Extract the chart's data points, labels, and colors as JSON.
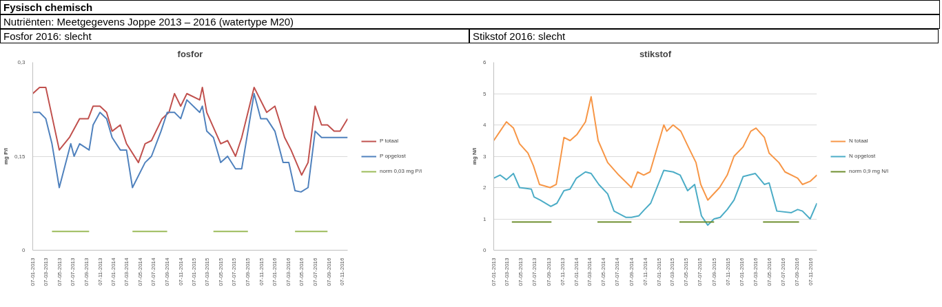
{
  "chart_data": [
    {
      "type": "line",
      "title": "fosfor",
      "ylabel": "mg P/l",
      "annotations": [
        "Fysisch chemisch",
        "Nutriënten: Meetgegevens Joppe 2013 – 2016 (watertype M20)",
        "Fosfor 2016: slecht"
      ],
      "xlim": [
        "2013-01-07",
        "2016-12-01"
      ],
      "xticks": [
        {
          "value": "2013-01-07",
          "label": "07-01-2013"
        },
        {
          "value": "2013-03-07",
          "label": "07-03-2013"
        },
        {
          "value": "2013-05-07",
          "label": "07-05-2013"
        },
        {
          "value": "2013-07-07",
          "label": "07-07-2013"
        },
        {
          "value": "2013-09-07",
          "label": "07-09-2013"
        },
        {
          "value": "2013-11-07",
          "label": "07-11-2013"
        },
        {
          "value": "2014-01-07",
          "label": "07-01-2014"
        },
        {
          "value": "2014-03-07",
          "label": "07-03-2014"
        },
        {
          "value": "2014-05-07",
          "label": "07-05-2014"
        },
        {
          "value": "2014-07-07",
          "label": "07-07-2014"
        },
        {
          "value": "2014-09-07",
          "label": "07-09-2014"
        },
        {
          "value": "2014-11-07",
          "label": "07-11-2014"
        },
        {
          "value": "2015-01-07",
          "label": "07-01-2015"
        },
        {
          "value": "2015-03-07",
          "label": "07-03-2015"
        },
        {
          "value": "2015-05-07",
          "label": "07-05-2015"
        },
        {
          "value": "2015-07-07",
          "label": "07-07-2015"
        },
        {
          "value": "2015-09-07",
          "label": "07-09-2015"
        },
        {
          "value": "2015-11-07",
          "label": "07-11-2015"
        },
        {
          "value": "2016-01-07",
          "label": "07-01-2016"
        },
        {
          "value": "2016-03-07",
          "label": "07-03-2016"
        },
        {
          "value": "2016-05-07",
          "label": "07-05-2016"
        },
        {
          "value": "2016-07-07",
          "label": "07-07-2016"
        },
        {
          "value": "2016-09-07",
          "label": "07-09-2016"
        },
        {
          "value": "2016-11-07",
          "label": "07-11-2016"
        }
      ],
      "ylim": [
        0,
        0.3
      ],
      "yticks": [
        0,
        {
          "value": 0.15,
          "label": "0,15"
        },
        {
          "value": 0.3,
          "label": "0,3"
        }
      ],
      "grid": "y",
      "legend": "right",
      "line_style": "solid",
      "marker": "none",
      "series": [
        {
          "name": "P totaal",
          "color": "#c0504d",
          "x": [
            "2013-01-07",
            "2013-02-07",
            "2013-03-07",
            "2013-05-07",
            "2013-06-22",
            "2013-08-07",
            "2013-09-15",
            "2013-10-07",
            "2013-11-07",
            "2013-12-07",
            "2014-01-01",
            "2014-02-07",
            "2014-03-07",
            "2014-04-30",
            "2014-05-30",
            "2014-06-28",
            "2014-08-15",
            "2014-09-15",
            "2014-10-10",
            "2014-11-07",
            "2014-12-05",
            "2015-02-01",
            "2015-02-13",
            "2015-03-05",
            "2015-05-07",
            "2015-06-07",
            "2015-07-13",
            "2015-08-10",
            "2015-10-05",
            "2015-12-01",
            "2016-01-07",
            "2016-02-20",
            "2016-03-20",
            "2016-05-07",
            "2016-06-05",
            "2016-07-07",
            "2016-08-05",
            "2016-09-01",
            "2016-10-01",
            "2016-10-28",
            "2016-12-01"
          ],
          "values": [
            0.25,
            0.26,
            0.26,
            0.16,
            0.18,
            0.21,
            0.21,
            0.23,
            0.23,
            0.22,
            0.19,
            0.2,
            0.17,
            0.14,
            0.17,
            0.175,
            0.21,
            0.22,
            0.25,
            0.23,
            0.25,
            0.24,
            0.26,
            0.22,
            0.17,
            0.175,
            0.15,
            0.18,
            0.26,
            0.22,
            0.23,
            0.18,
            0.16,
            0.12,
            0.14,
            0.23,
            0.2,
            0.2,
            0.19,
            0.19,
            0.21
          ]
        },
        {
          "name": "P opgelost",
          "color": "#4f81bd",
          "x": [
            "2013-01-07",
            "2013-02-07",
            "2013-03-07",
            "2013-04-04",
            "2013-05-07",
            "2013-06-28",
            "2013-07-13",
            "2013-08-07",
            "2013-09-19",
            "2013-10-07",
            "2013-11-07",
            "2013-12-07",
            "2014-01-01",
            "2014-02-07",
            "2014-03-07",
            "2014-04-03",
            "2014-05-30",
            "2014-06-28",
            "2014-08-10",
            "2014-09-07",
            "2014-10-10",
            "2014-11-07",
            "2014-12-05",
            "2015-02-01",
            "2015-02-13",
            "2015-03-05",
            "2015-04-04",
            "2015-05-07",
            "2015-06-07",
            "2015-07-13",
            "2015-08-10",
            "2015-10-05",
            "2015-11-04",
            "2015-12-01",
            "2016-01-07",
            "2016-02-13",
            "2016-03-10",
            "2016-04-07",
            "2016-05-04",
            "2016-06-05",
            "2016-07-07",
            "2016-08-05",
            "2016-12-01"
          ],
          "values": [
            0.22,
            0.22,
            0.21,
            0.17,
            0.1,
            0.17,
            0.15,
            0.17,
            0.16,
            0.2,
            0.22,
            0.21,
            0.18,
            0.16,
            0.16,
            0.1,
            0.14,
            0.15,
            0.19,
            0.22,
            0.22,
            0.21,
            0.24,
            0.22,
            0.23,
            0.19,
            0.18,
            0.14,
            0.15,
            0.13,
            0.13,
            0.25,
            0.21,
            0.21,
            0.19,
            0.14,
            0.14,
            0.095,
            0.093,
            0.1,
            0.19,
            0.18,
            0.18
          ]
        },
        {
          "name": "norm 0,03 mg P/l",
          "color": "#9bbb59",
          "x": [
            "2013-04-04",
            "2013-09-19",
            "2013-12-01",
            "2014-04-03",
            "2014-09-07",
            "2014-12-01",
            "2015-04-04",
            "2015-09-07",
            "2015-12-01",
            "2016-04-07",
            "2016-09-01"
          ],
          "values": [
            0.03,
            0.03,
            null,
            0.03,
            0.03,
            null,
            0.03,
            0.03,
            null,
            0.03,
            0.03
          ]
        }
      ]
    },
    {
      "type": "line",
      "title": "stikstof",
      "ylabel": "mg N/l",
      "annotations": [
        "Stikstof 2016: slecht"
      ],
      "xlim": [
        "2013-01-07",
        "2016-12-04"
      ],
      "xticks": [
        {
          "value": "2013-01-07",
          "label": "07-01-2013"
        },
        {
          "value": "2013-03-07",
          "label": "07-03-2013"
        },
        {
          "value": "2013-05-07",
          "label": "07-05-2013"
        },
        {
          "value": "2013-07-07",
          "label": "07-07-2013"
        },
        {
          "value": "2013-09-07",
          "label": "07-09-2013"
        },
        {
          "value": "2013-11-07",
          "label": "07-11-2013"
        },
        {
          "value": "2014-01-07",
          "label": "07-01-2014"
        },
        {
          "value": "2014-03-07",
          "label": "07-03-2014"
        },
        {
          "value": "2014-05-07",
          "label": "07-05-2014"
        },
        {
          "value": "2014-07-07",
          "label": "07-07-2014"
        },
        {
          "value": "2014-09-07",
          "label": "07-09-2014"
        },
        {
          "value": "2014-11-07",
          "label": "07-11-2014"
        },
        {
          "value": "2015-01-07",
          "label": "07-01-2015"
        },
        {
          "value": "2015-03-07",
          "label": "07-03-2015"
        },
        {
          "value": "2015-05-07",
          "label": "07-05-2015"
        },
        {
          "value": "2015-07-07",
          "label": "07-07-2015"
        },
        {
          "value": "2015-09-07",
          "label": "07-09-2015"
        },
        {
          "value": "2015-11-07",
          "label": "07-11-2015"
        },
        {
          "value": "2016-01-07",
          "label": "07-01-2016"
        },
        {
          "value": "2016-03-07",
          "label": "07-03-2016"
        },
        {
          "value": "2016-05-07",
          "label": "07-05-2016"
        },
        {
          "value": "2016-07-07",
          "label": "07-07-2016"
        },
        {
          "value": "2016-09-07",
          "label": "07-09-2016"
        },
        {
          "value": "2016-11-07",
          "label": "07-11-2016"
        }
      ],
      "ylim": [
        0,
        6
      ],
      "yticks": [
        0,
        1,
        2,
        3,
        4,
        5,
        6
      ],
      "grid": "y",
      "legend": "right",
      "line_style": "solid",
      "marker": "none",
      "series": [
        {
          "name": "N totaal",
          "color": "#f79646",
          "x": [
            "2013-01-07",
            "2013-02-04",
            "2013-03-04",
            "2013-04-04",
            "2013-05-01",
            "2013-06-07",
            "2013-07-01",
            "2013-07-28",
            "2013-09-13",
            "2013-10-10",
            "2013-11-13",
            "2013-12-10",
            "2014-01-10",
            "2014-02-16",
            "2014-03-13",
            "2014-04-13",
            "2014-05-25",
            "2014-07-13",
            "2014-09-07",
            "2014-10-04",
            "2014-10-31",
            "2014-11-28",
            "2015-01-28",
            "2015-02-10",
            "2015-03-10",
            "2015-04-13",
            "2015-05-16",
            "2015-06-19",
            "2015-07-10",
            "2015-08-10",
            "2015-10-01",
            "2015-11-04",
            "2015-12-04",
            "2016-01-13",
            "2016-02-16",
            "2016-03-10",
            "2016-04-16",
            "2016-05-07",
            "2016-06-19",
            "2016-07-16",
            "2016-09-10",
            "2016-10-01",
            "2016-11-04",
            "2016-12-04"
          ],
          "values": [
            3.5,
            3.8,
            4.1,
            3.9,
            3.4,
            3.1,
            2.7,
            2.1,
            2.0,
            2.1,
            3.6,
            3.5,
            3.7,
            4.1,
            4.9,
            3.5,
            2.8,
            2.4,
            2.0,
            2.5,
            2.4,
            2.5,
            4.0,
            3.8,
            4.0,
            3.8,
            3.3,
            2.8,
            2.1,
            1.6,
            2.0,
            2.4,
            3.0,
            3.3,
            3.8,
            3.9,
            3.6,
            3.1,
            2.8,
            2.5,
            2.3,
            2.1,
            2.2,
            2.4
          ]
        },
        {
          "name": "N opgelost",
          "color": "#4bacc6",
          "x": [
            "2013-01-07",
            "2013-02-04",
            "2013-03-04",
            "2013-04-04",
            "2013-05-01",
            "2013-06-22",
            "2013-07-04",
            "2013-07-31",
            "2013-09-16",
            "2013-10-13",
            "2013-11-13",
            "2013-12-10",
            "2014-01-07",
            "2014-02-16",
            "2014-03-13",
            "2014-04-16",
            "2014-05-25",
            "2014-06-22",
            "2014-08-13",
            "2014-09-07",
            "2014-10-10",
            "2014-11-04",
            "2014-12-01",
            "2015-01-28",
            "2015-03-10",
            "2015-04-10",
            "2015-05-13",
            "2015-06-13",
            "2015-07-13",
            "2015-08-10",
            "2015-09-07",
            "2015-10-04",
            "2015-11-04",
            "2015-12-04",
            "2016-01-13",
            "2016-03-07",
            "2016-04-16",
            "2016-05-07",
            "2016-06-10",
            "2016-08-13",
            "2016-09-10",
            "2016-10-01",
            "2016-11-04",
            "2016-12-04"
          ],
          "values": [
            2.3,
            2.4,
            2.25,
            2.45,
            2.0,
            1.95,
            1.7,
            1.6,
            1.4,
            1.5,
            1.9,
            1.95,
            2.3,
            2.5,
            2.45,
            2.1,
            1.8,
            1.25,
            1.05,
            1.05,
            1.1,
            1.3,
            1.5,
            2.55,
            2.5,
            2.4,
            1.9,
            2.1,
            1.1,
            0.8,
            1.0,
            1.05,
            1.3,
            1.6,
            2.35,
            2.45,
            2.1,
            2.15,
            1.25,
            1.2,
            1.3,
            1.25,
            1.0,
            1.5
          ]
        },
        {
          "name": "norm 0,9 mg N/l",
          "color": "#6f8f2f",
          "x": [
            "2013-03-28",
            "2013-09-19",
            "2013-12-01",
            "2014-04-10",
            "2014-09-07",
            "2014-12-01",
            "2015-04-07",
            "2015-09-07",
            "2015-12-01",
            "2016-04-10",
            "2016-09-16"
          ],
          "values": [
            0.9,
            0.9,
            null,
            0.9,
            0.9,
            null,
            0.9,
            0.9,
            null,
            0.9,
            0.9
          ]
        }
      ]
    }
  ]
}
